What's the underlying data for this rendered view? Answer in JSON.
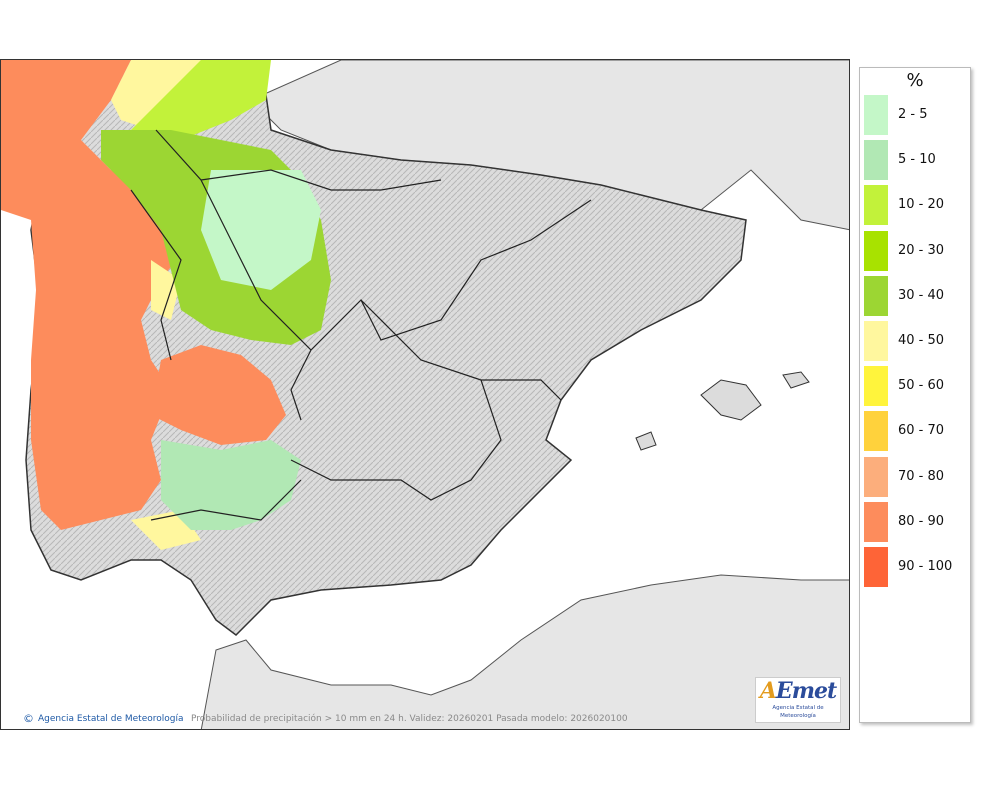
{
  "legend": {
    "title": "%",
    "items": [
      {
        "label": "2 - 5",
        "color": "#c4f7c8"
      },
      {
        "label": "5 - 10",
        "color": "#b1e8b4"
      },
      {
        "label": "10 - 20",
        "color": "#c2f23a"
      },
      {
        "label": "20 - 30",
        "color": "#a8e200"
      },
      {
        "label": "30 - 40",
        "color": "#9cd633"
      },
      {
        "label": "40 - 50",
        "color": "#fff79e"
      },
      {
        "label": "50 - 60",
        "color": "#fff43c"
      },
      {
        "label": "60 - 70",
        "color": "#ffd23c"
      },
      {
        "label": "70 - 80",
        "color": "#fcae7c"
      },
      {
        "label": "80 - 90",
        "color": "#fd8c5c"
      },
      {
        "label": "90 - 100",
        "color": "#fe6437"
      }
    ]
  },
  "footer": {
    "credit": "Agencia Estatal de Meteorología",
    "caption": "Probabilidad de precipitación > 10 mm en 24 h. Validez: 20260201 Pasada modelo: 2026020100"
  },
  "logo": {
    "text_a": "A",
    "text_rest": "Emet",
    "subtitle": "Agencia Estatal de Meteorología"
  },
  "icons": {
    "copyright": "©"
  }
}
